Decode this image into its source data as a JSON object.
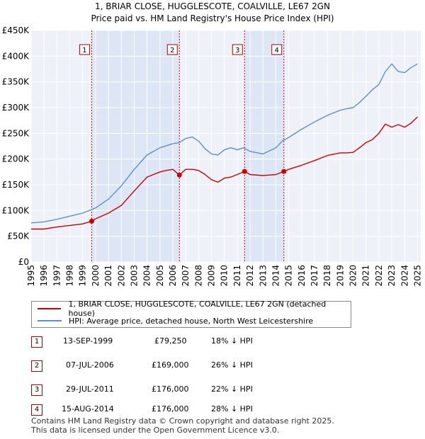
{
  "chart_data": {
    "type": "line",
    "title": "1, BRIAR CLOSE, HUGGLESCOTE, COALVILLE, LE67 2GN",
    "subtitle": "Price paid vs. HM Land Registry's House Price Index (HPI)",
    "xlim": [
      1995,
      2025.25
    ],
    "ylim": [
      0,
      450000
    ],
    "x_ticks": [
      "1995",
      "1996",
      "1997",
      "1998",
      "1999",
      "2000",
      "2001",
      "2002",
      "2003",
      "2004",
      "2005",
      "2006",
      "2007",
      "2008",
      "2009",
      "2010",
      "2011",
      "2012",
      "2013",
      "2014",
      "2015",
      "2016",
      "2017",
      "2018",
      "2019",
      "2020",
      "2021",
      "2022",
      "2023",
      "2024",
      "2025"
    ],
    "y_ticks": [
      {
        "value": 0,
        "label": "£0"
      },
      {
        "value": 50000,
        "label": "£50K"
      },
      {
        "value": 100000,
        "label": "£100K"
      },
      {
        "value": 150000,
        "label": "£150K"
      },
      {
        "value": 200000,
        "label": "£200K"
      },
      {
        "value": 250000,
        "label": "£250K"
      },
      {
        "value": 300000,
        "label": "£300K"
      },
      {
        "value": 350000,
        "label": "£350K"
      },
      {
        "value": 400000,
        "label": "£400K"
      },
      {
        "value": 450000,
        "label": "£450K"
      }
    ],
    "grid": true,
    "shaded_ranges": [
      [
        1999.7,
        2006.51
      ],
      [
        2011.57,
        2014.62
      ]
    ],
    "series": [
      {
        "name": "1, BRIAR CLOSE, HUGGLESCOTE, COALVILLE, LE67 2GN (detached house)",
        "color": "#cc0000",
        "x": [
          1995,
          1996,
          1997,
          1998,
          1999,
          1999.7,
          2000,
          2001,
          2002,
          2003,
          2004,
          2005,
          2005.5,
          2006,
          2006.51,
          2007,
          2007.5,
          2008,
          2008.5,
          2009,
          2009.5,
          2010,
          2010.5,
          2011,
          2011.57,
          2012,
          2013,
          2014,
          2014.62,
          2015,
          2016,
          2017,
          2018,
          2019,
          2019.5,
          2020,
          2020.5,
          2021,
          2021.5,
          2022,
          2022.5,
          2023,
          2023.5,
          2024,
          2024.5,
          2025
        ],
        "y": [
          64000,
          64000,
          68000,
          71000,
          74000,
          79250,
          84000,
          95000,
          110000,
          138000,
          165000,
          175000,
          178000,
          180000,
          169000,
          180000,
          180000,
          178000,
          170000,
          160000,
          155000,
          163000,
          165000,
          170000,
          176000,
          170000,
          168000,
          170000,
          176000,
          180000,
          188000,
          197000,
          207000,
          212000,
          212000,
          213000,
          222000,
          232000,
          238000,
          250000,
          268000,
          262000,
          267000,
          262000,
          270000,
          282000
        ]
      },
      {
        "name": "HPI: Average price, detached house, North West Leicestershire",
        "color": "#5b8fd0",
        "x": [
          1995,
          1996,
          1997,
          1998,
          1999,
          2000,
          2001,
          2002,
          2003,
          2004,
          2005,
          2006,
          2006.5,
          2007,
          2007.5,
          2008,
          2008.5,
          2009,
          2009.5,
          2010,
          2010.5,
          2011,
          2011.5,
          2012,
          2013,
          2014,
          2014.5,
          2015,
          2016,
          2017,
          2018,
          2019,
          2019.5,
          2020,
          2020.5,
          2021,
          2021.5,
          2022,
          2022.5,
          2023,
          2023.5,
          2024,
          2024.5,
          2025
        ],
        "y": [
          76000,
          78000,
          83000,
          89000,
          95000,
          105000,
          122000,
          148000,
          180000,
          208000,
          222000,
          230000,
          232000,
          240000,
          243000,
          235000,
          220000,
          210000,
          208000,
          218000,
          222000,
          218000,
          222000,
          215000,
          210000,
          222000,
          235000,
          242000,
          258000,
          272000,
          285000,
          295000,
          298000,
          300000,
          310000,
          322000,
          335000,
          345000,
          370000,
          385000,
          370000,
          368000,
          378000,
          385000
        ]
      }
    ],
    "sales": [
      {
        "num": "1",
        "date": "13-SEP-1999",
        "x": 1999.7,
        "price": 79250,
        "price_label": "£79,250",
        "hpi": "18% ↓ HPI"
      },
      {
        "num": "2",
        "date": "07-JUL-2006",
        "x": 2006.51,
        "price": 169000,
        "price_label": "£169,000",
        "hpi": "26% ↓ HPI"
      },
      {
        "num": "3",
        "date": "29-JUL-2011",
        "x": 2011.57,
        "price": 176000,
        "price_label": "£176,000",
        "hpi": "22% ↓ HPI"
      },
      {
        "num": "4",
        "date": "15-AUG-2014",
        "x": 2014.62,
        "price": 176000,
        "price_label": "£176,000",
        "hpi": "28% ↓ HPI"
      }
    ]
  },
  "legend": {
    "property": "1, BRIAR CLOSE, HUGGLESCOTE, COALVILLE, LE67 2GN (detached house)",
    "hpi": "HPI: Average price, detached house, North West Leicestershire"
  },
  "footer": {
    "line1": "Contains HM Land Registry data © Crown copyright and database right 2025.",
    "line2": "This data is licensed under the Open Government Licence v3.0."
  }
}
